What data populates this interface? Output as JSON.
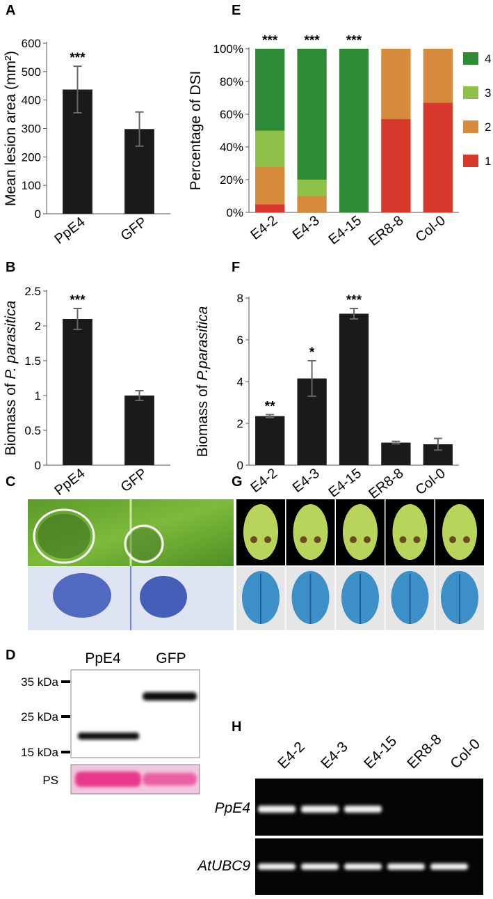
{
  "chart_data": [
    {
      "type": "bar",
      "label": "A",
      "ylabel": [
        "Mean lesion area (mm²)"
      ],
      "categories": [
        "PpE4",
        "GFP"
      ],
      "values": [
        437,
        298
      ],
      "errors": [
        82,
        60
      ],
      "annotations": [
        "***",
        null
      ],
      "color": "#1a1a1a",
      "ylim": [
        0,
        600
      ],
      "yticks": [
        0,
        100,
        200,
        300,
        400,
        500,
        600
      ]
    },
    {
      "type": "bar",
      "label": "B",
      "ylabel": [
        "Biomass of ",
        "P. parasitica"
      ],
      "categories": [
        "PpE4",
        "GFP"
      ],
      "values": [
        2.1,
        1.0
      ],
      "errors": [
        0.15,
        0.07
      ],
      "annotations": [
        "***",
        null
      ],
      "color": "#1a1a1a",
      "ylim": [
        0,
        2.5
      ],
      "yticks": [
        0,
        0.5,
        1,
        1.5,
        2,
        2.5
      ]
    },
    {
      "type": "stacked_bar",
      "label": "E",
      "ylabel": [
        "Percentage of DSI"
      ],
      "categories": [
        "E4-2",
        "E4-3",
        "E4-15",
        "ER8-8",
        "Col-0"
      ],
      "series": [
        {
          "name": "1",
          "color": "#d7382b",
          "values": [
            5,
            0,
            0,
            57,
            67
          ]
        },
        {
          "name": "2",
          "color": "#d68a3c",
          "values": [
            23,
            10,
            0,
            43,
            33
          ]
        },
        {
          "name": "3",
          "color": "#8fc04a",
          "values": [
            22,
            10,
            0,
            0,
            0
          ]
        },
        {
          "name": "4",
          "color": "#2e8a35",
          "values": [
            50,
            80,
            100,
            0,
            0
          ]
        }
      ],
      "annotations": [
        "***",
        "***",
        "***",
        null,
        null
      ],
      "ylim": [
        0,
        100
      ],
      "yticks": [
        {
          "value": 0,
          "label": "0%"
        },
        {
          "value": 20,
          "label": "20%"
        },
        {
          "value": 40,
          "label": "40%"
        },
        {
          "value": 60,
          "label": "60%"
        },
        {
          "value": 80,
          "label": "80%"
        },
        {
          "value": 100,
          "label": "100%"
        }
      ]
    },
    {
      "type": "bar",
      "label": "F",
      "ylabel": [
        "Biomass of ",
        "P.parasitica"
      ],
      "categories": [
        "E4-2",
        "E4-3",
        "E4-15",
        "ER8-8",
        "Col-0"
      ],
      "values": [
        2.35,
        4.15,
        7.25,
        1.08,
        1.0
      ],
      "errors": [
        0.07,
        0.85,
        0.25,
        0.06,
        0.28
      ],
      "annotations": [
        "**",
        "*",
        "***",
        null,
        null
      ],
      "color": "#1a1a1a",
      "ylim": [
        0,
        8
      ],
      "yticks": [
        0,
        2,
        4,
        6,
        8
      ]
    }
  ],
  "panels": {
    "C": "C",
    "G": "G",
    "D": {
      "label": "D",
      "lanes": [
        "PpE4",
        "GFP"
      ],
      "markers": [
        "35 kDa",
        "25 kDa",
        "15 kDa"
      ],
      "stain": "PS"
    },
    "H": {
      "label": "H",
      "lanes": [
        "E4-2",
        "E4-3",
        "E4-15",
        "ER8-8",
        "Col-0"
      ],
      "genes": [
        "PpE4",
        "AtUBC9"
      ]
    }
  }
}
